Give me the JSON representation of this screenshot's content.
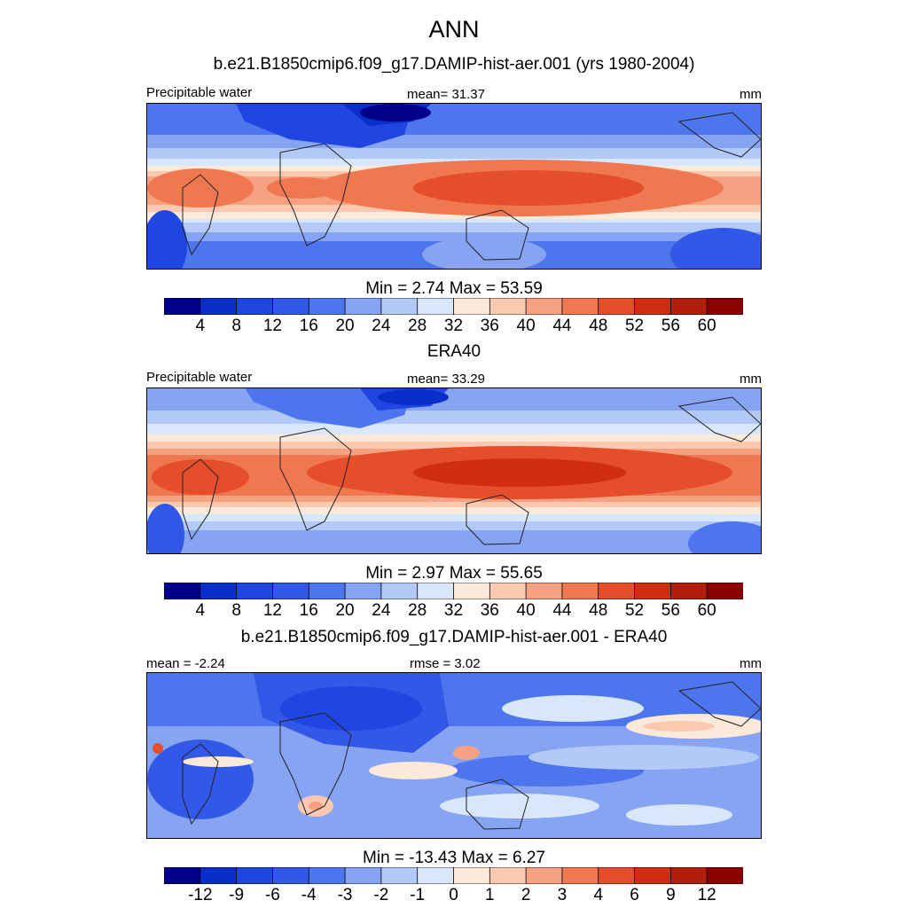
{
  "title": "ANN",
  "panels": [
    {
      "heading": "b.e21.B1850cmip6.f09_g17.DAMIP-hist-aer.001 (yrs 1980-2004)",
      "left_label": "Precipitable water",
      "center_label": "mean=  31.37",
      "right_label": "mm",
      "minmax": "Min =   2.74 Max =  53.59",
      "field": "precipitable-water-model",
      "colorbar": {
        "colors": [
          "#00008b",
          "#0a2ec8",
          "#1f46e0",
          "#3158e6",
          "#4c75ee",
          "#86a4f2",
          "#b3c9f7",
          "#d9e7fb",
          "#fde9d9",
          "#fbc8b0",
          "#f6a282",
          "#f07850",
          "#e54e2a",
          "#cf2e13",
          "#b11e0c",
          "#8b0000"
        ],
        "labels": [
          "4",
          "8",
          "12",
          "16",
          "20",
          "24",
          "28",
          "32",
          "36",
          "40",
          "44",
          "48",
          "52",
          "56",
          "60"
        ]
      }
    },
    {
      "heading": "ERA40",
      "left_label": "Precipitable water",
      "center_label": "mean=  33.29",
      "right_label": "mm",
      "minmax": "Min =   2.97 Max =  55.65",
      "field": "precipitable-water-era40",
      "colorbar": {
        "colors": [
          "#00008b",
          "#0a2ec8",
          "#1f46e0",
          "#3158e6",
          "#4c75ee",
          "#86a4f2",
          "#b3c9f7",
          "#d9e7fb",
          "#fde9d9",
          "#fbc8b0",
          "#f6a282",
          "#f07850",
          "#e54e2a",
          "#cf2e13",
          "#b11e0c",
          "#8b0000"
        ],
        "labels": [
          "4",
          "8",
          "12",
          "16",
          "20",
          "24",
          "28",
          "32",
          "36",
          "40",
          "44",
          "48",
          "52",
          "56",
          "60"
        ]
      }
    },
    {
      "heading": "b.e21.B1850cmip6.f09_g17.DAMIP-hist-aer.001 - ERA40",
      "left_label": "mean =  -2.24",
      "center_label": "rmse =   3.02",
      "right_label": "mm",
      "minmax": "Min = -13.43 Max =   6.27",
      "field": "difference",
      "colorbar": {
        "colors": [
          "#00008b",
          "#0a2ec8",
          "#1f46e0",
          "#3158e6",
          "#4c75ee",
          "#86a4f2",
          "#b3c9f7",
          "#d9e7fb",
          "#fde9d9",
          "#fbc8b0",
          "#f6a282",
          "#f07850",
          "#e54e2a",
          "#cf2e13",
          "#b11e0c",
          "#8b0000"
        ],
        "labels": [
          "-12",
          "-9",
          "-6",
          "-4",
          "-3",
          "-2",
          "-1",
          "0",
          "1",
          "2",
          "3",
          "4",
          "6",
          "9",
          "12"
        ]
      }
    }
  ]
}
